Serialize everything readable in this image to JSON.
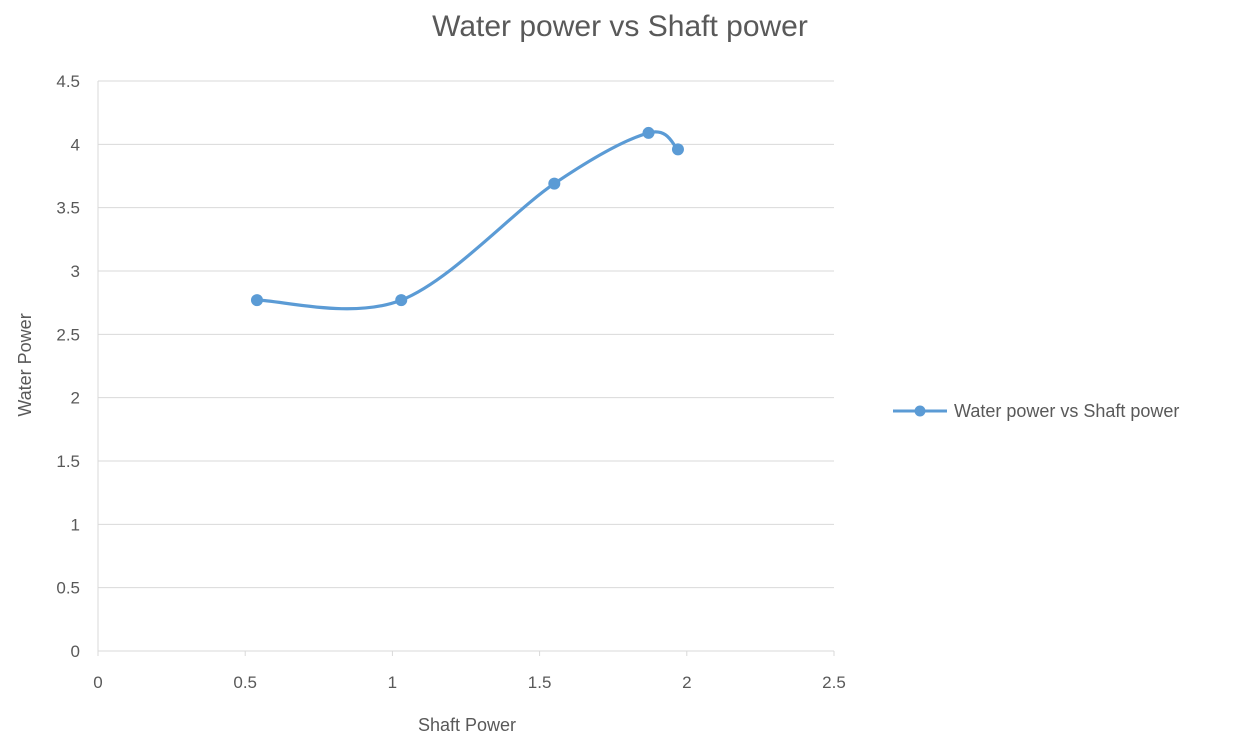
{
  "chart_data": {
    "type": "scatter",
    "title": "Water power vs Shaft power",
    "xlabel": "Shaft Power",
    "ylabel": "Water Power",
    "xlim": [
      0,
      2.5
    ],
    "ylim": [
      0,
      4.5
    ],
    "x_ticks": [
      "0",
      "0.5",
      "1",
      "1.5",
      "2",
      "2.5"
    ],
    "y_ticks": [
      "0",
      "0.5",
      "1",
      "1.5",
      "2",
      "2.5",
      "3",
      "3.5",
      "4",
      "4.5"
    ],
    "grid": "horizontal",
    "legend_position": "right",
    "smoothed_line": true,
    "series": [
      {
        "name": "Water power vs Shaft power",
        "color": "#5B9BD5",
        "x": [
          0.54,
          1.03,
          1.55,
          1.87,
          1.97
        ],
        "y": [
          2.77,
          2.77,
          3.69,
          4.09,
          3.96
        ]
      }
    ]
  }
}
